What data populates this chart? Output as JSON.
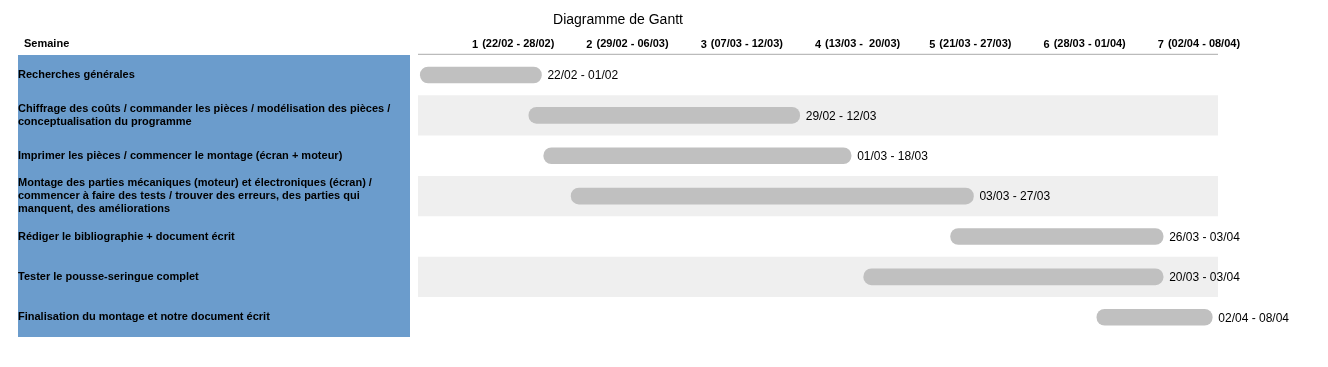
{
  "chart_data": {
    "type": "bar",
    "orientation": "horizontal",
    "title": "Diagramme de Gantt",
    "ylabel": "Semaine",
    "categories": [
      "Recherches générales",
      "Chiffrage des coûts / commander les pièces / modélisation des pièces / conceptualisation du programme",
      "Imprimer les pièces / commencer le montage (écran + moteur)",
      "Montage des parties mécaniques (moteur) et électroniques (écran) / commencer à faire des tests / trouver des erreurs, des parties qui manquent, des améliorations",
      "Rédiger le bibliographie + document écrit",
      "Tester le pousse-seringue complet",
      "Finalisation du montage et notre document écrit"
    ],
    "base": [
      0.52,
      1.47,
      1.6,
      1.84,
      5.16,
      4.4,
      6.44
    ],
    "values": [
      1.06,
      2.37,
      2.69,
      3.52,
      1.86,
      2.62,
      1.01
    ],
    "value_labels": [
      "22/02 - 01/02",
      "29/02 - 12/03",
      "01/03 - 18/03",
      "03/03 - 27/03",
      "26/03 - 03/04",
      "20/03 - 03/04",
      "02/04 - 08/04"
    ],
    "color": "#c0c0c0",
    "xlim": [
      0.5,
      7.5
    ],
    "xticks": [
      1,
      2,
      3,
      4,
      5,
      6,
      7
    ],
    "annotations": [
      "(22/02 - 28/02)",
      "(29/02 - 06/03)",
      "(07/03 - 12/03)",
      "(13/03 -  20/03)",
      "(21/03 - 27/03)",
      "(28/03 - 01/04)",
      "(02/04 - 08/04)"
    ],
    "grid": false,
    "legend": false
  }
}
